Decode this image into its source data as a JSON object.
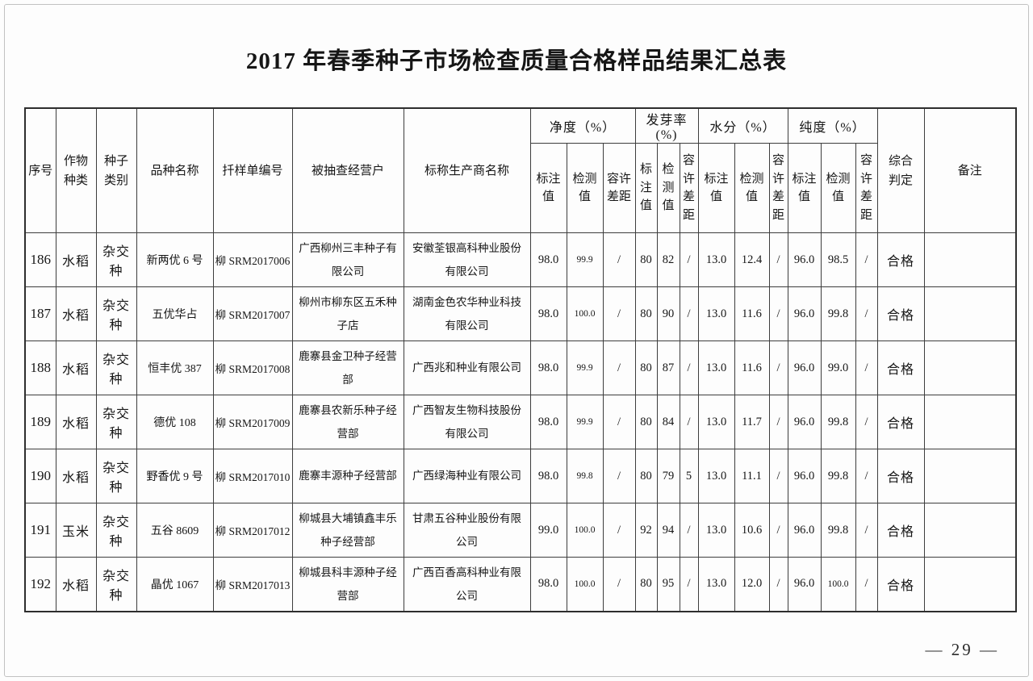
{
  "page": {
    "title": "2017 年春季种子市场检查质量合格样品结果汇总表",
    "page_number": "— 29 —"
  },
  "table": {
    "columns": {
      "serial": "序号",
      "crop_type": "作物\n种类",
      "seed_category": "种子\n类别",
      "variety_name": "品种名称",
      "sample_number": "扦样单编号",
      "dealer": "被抽查经营户",
      "producer": "标称生产商名称",
      "verdict": "综合\n判定",
      "remark": "备注"
    },
    "groups": [
      {
        "label": "净度（%）",
        "sub": [
          "标注\n值",
          "检测\n值",
          "容许\n差距"
        ]
      },
      {
        "label": "发芽率(%)",
        "sub": [
          "标\n注\n值",
          "检\n测\n值",
          "容\n许\n差\n距"
        ]
      },
      {
        "label": "水分（%）",
        "sub": [
          "标注\n值",
          "检测\n值",
          "容\n许\n差\n距"
        ]
      },
      {
        "label": "纯度（%）",
        "sub": [
          "标注\n值",
          "检测\n值",
          "容\n许\n差\n距"
        ]
      }
    ],
    "rows": [
      {
        "no": "186",
        "crop": "水稻",
        "seed_type": "杂交种",
        "variety": "新两优 6 号",
        "sample_no": "柳 SRM2017006",
        "dealer": "广西柳州三丰种子有限公司",
        "producer": "安徽荃银高科种业股份有限公司",
        "values": [
          "98.0",
          "99.9",
          "/",
          "80",
          "82",
          "/",
          "13.0",
          "12.4",
          "/",
          "96.0",
          "98.5",
          "/"
        ],
        "verdict": "合格",
        "remark": ""
      },
      {
        "no": "187",
        "crop": "水稻",
        "seed_type": "杂交种",
        "variety": "五优华占",
        "sample_no": "柳 SRM2017007",
        "dealer": "柳州市柳东区五禾种子店",
        "producer": "湖南金色农华种业科技有限公司",
        "values": [
          "98.0",
          "100.0",
          "/",
          "80",
          "90",
          "/",
          "13.0",
          "11.6",
          "/",
          "96.0",
          "99.8",
          "/"
        ],
        "verdict": "合格",
        "remark": ""
      },
      {
        "no": "188",
        "crop": "水稻",
        "seed_type": "杂交种",
        "variety": "恒丰优 387",
        "sample_no": "柳 SRM2017008",
        "dealer": "鹿寨县金卫种子经营部",
        "producer": "广西兆和种业有限公司",
        "values": [
          "98.0",
          "99.9",
          "/",
          "80",
          "87",
          "/",
          "13.0",
          "11.6",
          "/",
          "96.0",
          "99.0",
          "/"
        ],
        "verdict": "合格",
        "remark": ""
      },
      {
        "no": "189",
        "crop": "水稻",
        "seed_type": "杂交种",
        "variety": "德优 108",
        "sample_no": "柳 SRM2017009",
        "dealer": "鹿寨县农新乐种子经营部",
        "producer": "广西智友生物科技股份有限公司",
        "values": [
          "98.0",
          "99.9",
          "/",
          "80",
          "84",
          "/",
          "13.0",
          "11.7",
          "/",
          "96.0",
          "99.8",
          "/"
        ],
        "verdict": "合格",
        "remark": ""
      },
      {
        "no": "190",
        "crop": "水稻",
        "seed_type": "杂交种",
        "variety": "野香优 9 号",
        "sample_no": "柳 SRM2017010",
        "dealer": "鹿寨丰源种子经营部",
        "producer": "广西绿海种业有限公司",
        "values": [
          "98.0",
          "99.8",
          "/",
          "80",
          "79",
          "5",
          "13.0",
          "11.1",
          "/",
          "96.0",
          "99.8",
          "/"
        ],
        "verdict": "合格",
        "remark": ""
      },
      {
        "no": "191",
        "crop": "玉米",
        "seed_type": "杂交种",
        "variety": "五谷 8609",
        "sample_no": "柳 SRM2017012",
        "dealer": "柳城县大埔镇鑫丰乐种子经营部",
        "producer": "甘肃五谷种业股份有限公司",
        "values": [
          "99.0",
          "100.0",
          "/",
          "92",
          "94",
          "/",
          "13.0",
          "10.6",
          "/",
          "96.0",
          "99.8",
          "/"
        ],
        "verdict": "合格",
        "remark": ""
      },
      {
        "no": "192",
        "crop": "水稻",
        "seed_type": "杂交种",
        "variety": "晶优 1067",
        "sample_no": "柳 SRM2017013",
        "dealer": "柳城县科丰源种子经营部",
        "producer": "广西百香高科种业有限公司",
        "values": [
          "98.0",
          "100.0",
          "/",
          "80",
          "95",
          "/",
          "13.0",
          "12.0",
          "/",
          "96.0",
          "100.0",
          "/"
        ],
        "verdict": "合格",
        "remark": ""
      }
    ]
  }
}
